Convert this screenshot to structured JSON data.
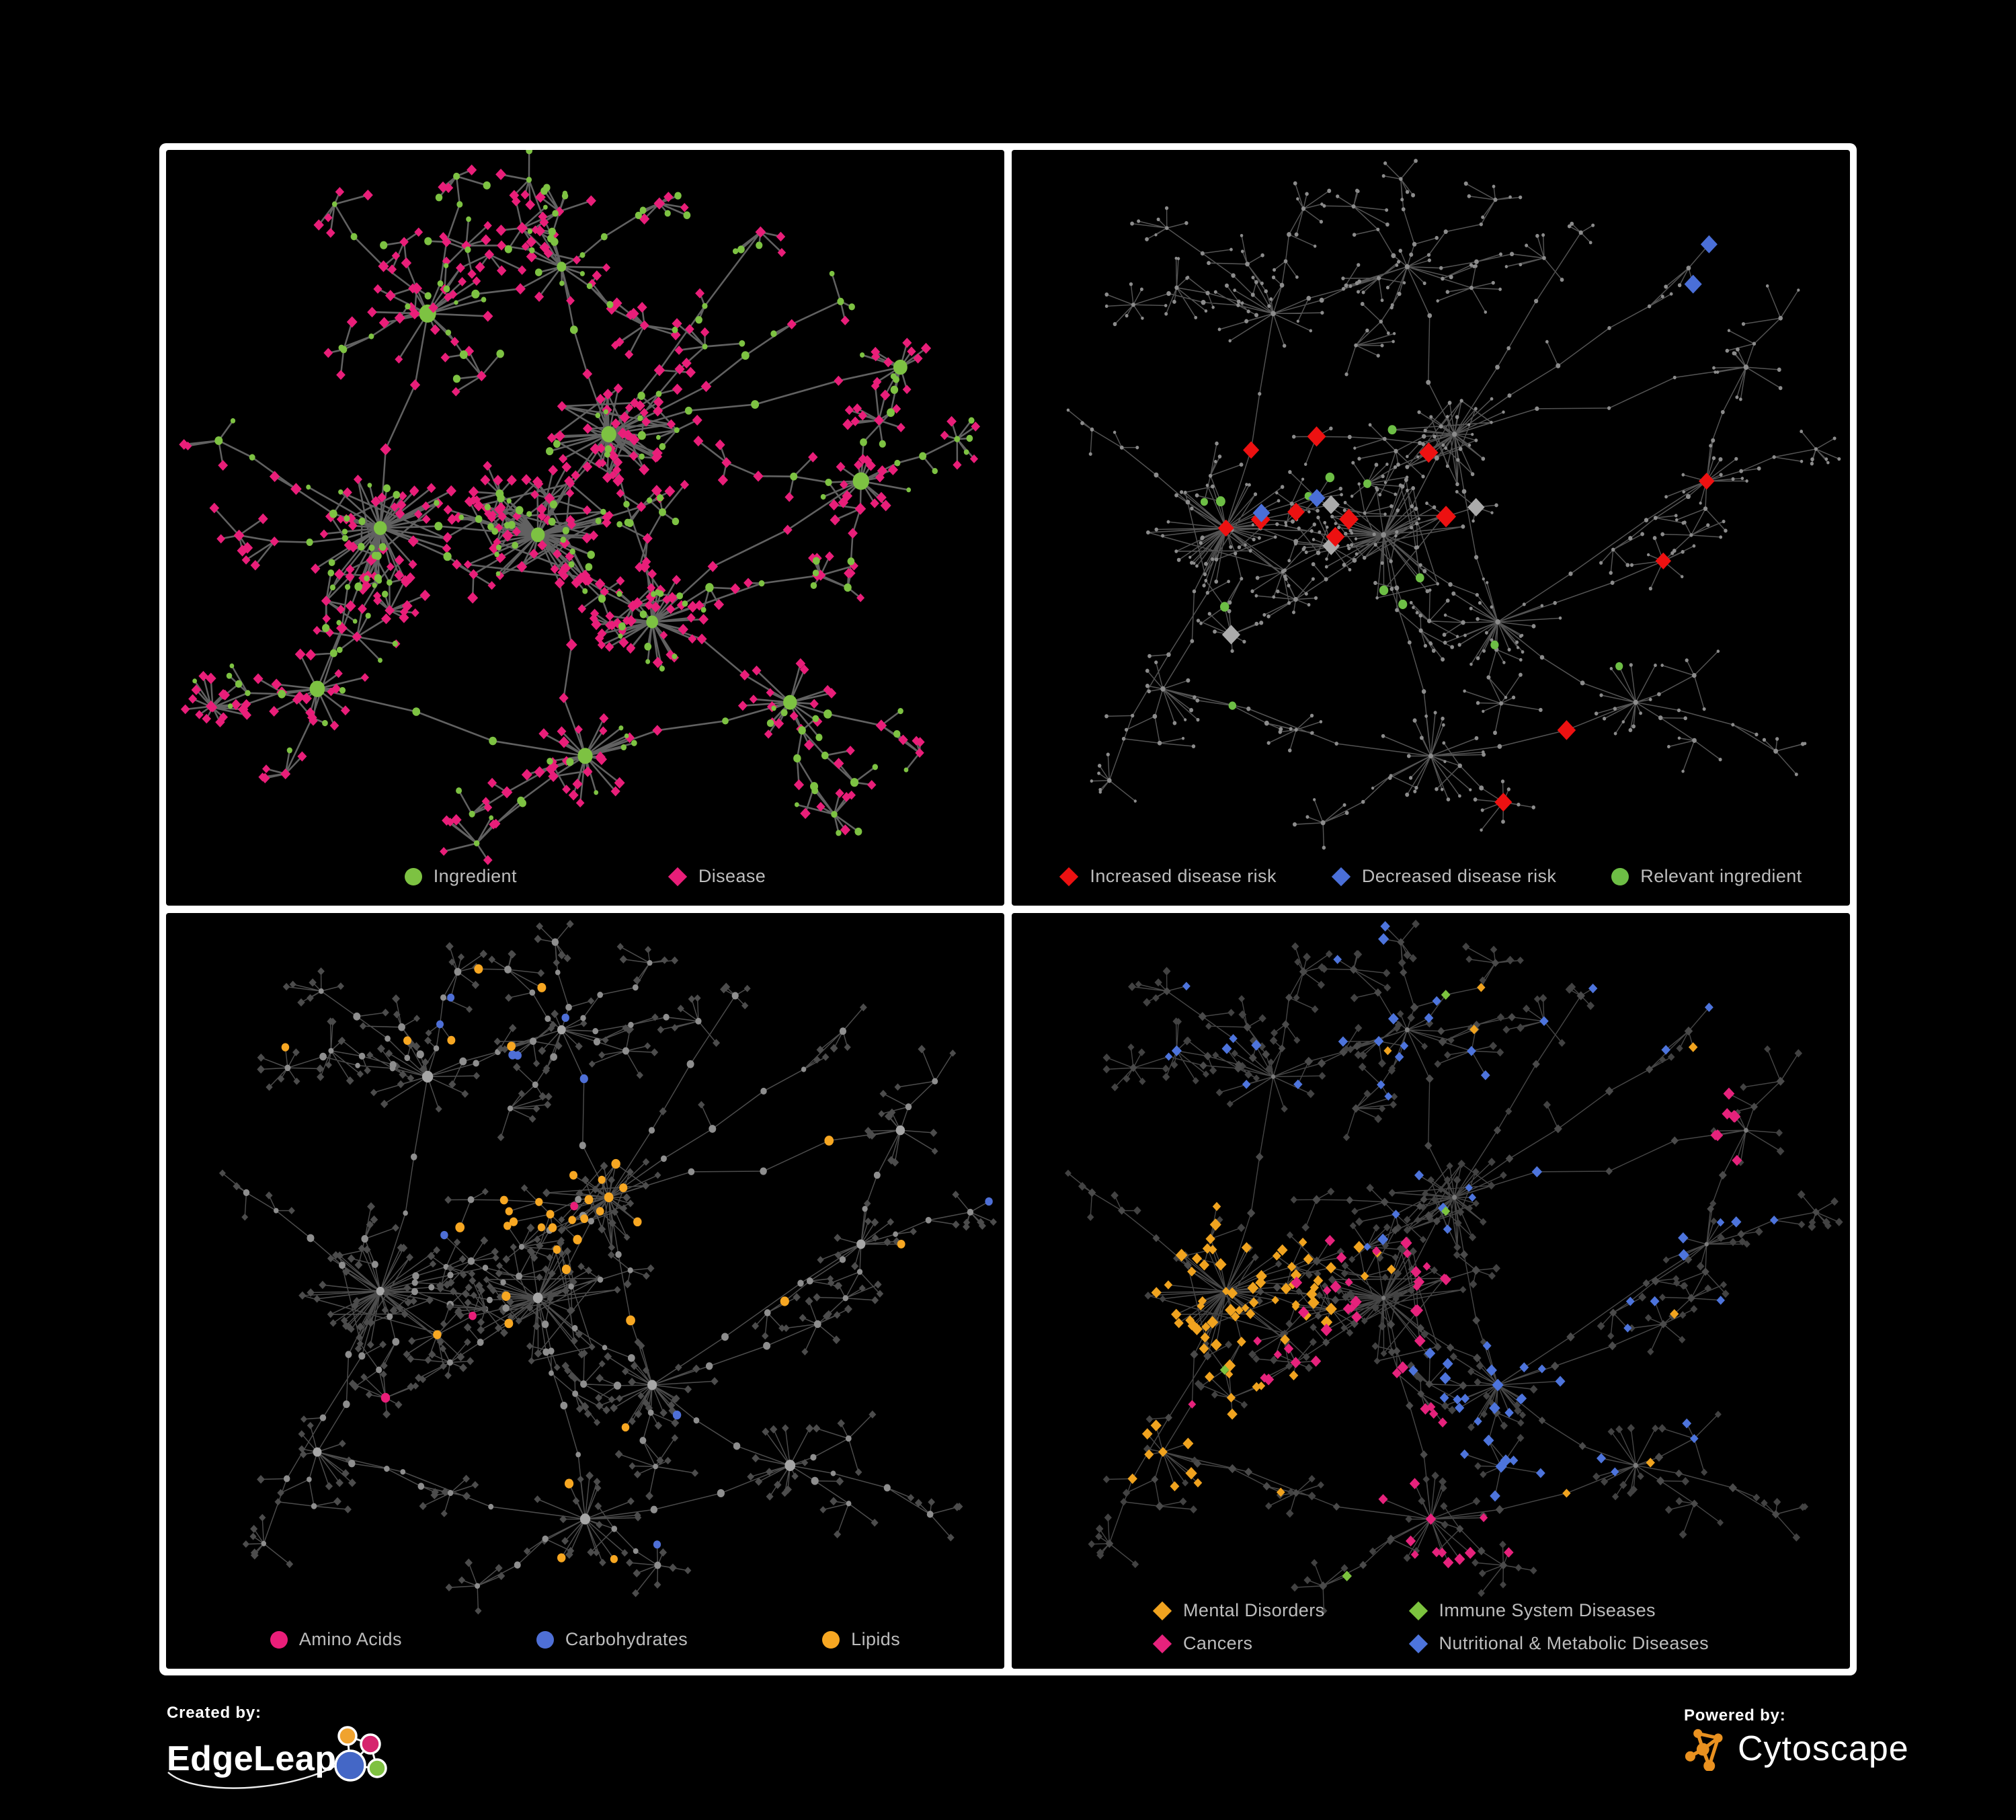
{
  "branding": {
    "created_by": "Created by:",
    "edgeleap": "EdgeLeap",
    "powered_by": "Powered by:",
    "cytoscape": "Cytoscape"
  },
  "colors": {
    "background": "#000000",
    "panel_border": "#ffffff",
    "legend_text": "#BDBDBD",
    "green": "#7DC242",
    "pink": "#E91E79",
    "red": "#ED1111",
    "blue": "#4A6FD8",
    "orange": "#F7A722",
    "gray_dot": "#8C8C8C",
    "gray_diamond": "#ABABAB",
    "dark_diamond": "#434343",
    "edgeleap_orange": "#F0A32F",
    "edgeleap_pink": "#D6246E",
    "edgeleap_blue": "#4467C6",
    "edgeleap_green": "#7FC141",
    "cytoscape_orange": "#E99120"
  },
  "panels": [
    {
      "id": "ingredients-diseases",
      "seed": 41,
      "graph": "own",
      "density": 1.25,
      "style": {
        "edge": {
          "color": "#666666",
          "width": 2.0,
          "opacity": 0.95
        },
        "base": {
          "hub": {
            "shape": "circle",
            "color": "#7DC242",
            "smin": 5.5,
            "smax": 10.5
          },
          "mid": {
            "shape": "diamond",
            "color": "#E91E79",
            "smin": 3.8,
            "smax": 4.8
          },
          "leaf": {
            "shape": "diamond",
            "color": "#E91E79",
            "smin": 3.4,
            "smax": 4.6
          }
        },
        "rules": [
          {
            "shape": "circle",
            "color": "#7DC242",
            "kinds": [
              "mid"
            ],
            "p": 0.45,
            "max": 999,
            "smin": 3.0,
            "smax": 5.0
          },
          {
            "shape": "circle",
            "color": "#7DC242",
            "kinds": [
              "leaf"
            ],
            "p": 0.28,
            "max": 999,
            "smin": 2.6,
            "smax": 4.6
          }
        ]
      },
      "legend": {
        "items": [
          {
            "shape": "circle",
            "color": "#7DC242",
            "label": "Ingredient"
          },
          {
            "shape": "diamond",
            "color": "#E91E79",
            "label": "Disease"
          }
        ]
      }
    },
    {
      "id": "disease-risk",
      "seed": 77,
      "graph": "shared",
      "style": {
        "edge": {
          "color": "#616161",
          "width": 1.15,
          "opacity": 0.85
        },
        "base": {
          "hub": {
            "shape": "circle",
            "color": "#8C8C8C",
            "smin": 2.6,
            "smax": 3.1
          },
          "mid": {
            "shape": "circle",
            "color": "#8C8C8C",
            "smin": 2.0,
            "smax": 2.8
          },
          "leaf": {
            "shape": "circle",
            "color": "#8C8C8C",
            "smin": 1.7,
            "smax": 2.4
          }
        },
        "rules": [
          {
            "shape": "diamond",
            "color": "#4A6FD8",
            "clusters": [
              "ne-end"
            ],
            "p": 1,
            "max": 2,
            "smin": 6.5,
            "smax": 7.5
          },
          {
            "shape": "diamond",
            "color": "#ED1111",
            "clusters": [
              "left",
              "center",
              "upper",
              "rightstar",
              "se",
              "ne-far",
              "right",
              "bottomstar"
            ],
            "kinds": [
              "mid",
              "hub"
            ],
            "p": 0.16,
            "max": 34,
            "smin": 6.5,
            "smax": 9.5
          },
          {
            "shape": "diamond",
            "color": "#4A6FD8",
            "clusters": [
              "left",
              "center"
            ],
            "kinds": [
              "mid"
            ],
            "p": 0.07,
            "max": 8,
            "smin": 6.0,
            "smax": 8.0
          },
          {
            "shape": "diamond",
            "color": "#ABABAB",
            "clusters": [
              "left",
              "center",
              "upper",
              "rightstar"
            ],
            "kinds": [
              "mid"
            ],
            "p": 0.05,
            "max": 8,
            "smin": 6.5,
            "smax": 8.0
          },
          {
            "shape": "circle",
            "color": "#6DBE45",
            "clusters": [
              "left",
              "center",
              "upper",
              "rightstar",
              "se",
              "swsmall",
              "ne-arm"
            ],
            "kinds": [
              "mid",
              "leaf"
            ],
            "p": 0.055,
            "max": 30,
            "smin": 4.4,
            "smax": 5.6
          }
        ]
      },
      "legend": {
        "items": [
          {
            "shape": "diamond",
            "color": "#ED1111",
            "label": "Increased disease risk"
          },
          {
            "shape": "diamond",
            "color": "#4A6FD8",
            "label": "Decreased disease risk"
          },
          {
            "shape": "circle",
            "color": "#6DBE45",
            "label": "Relevant ingredient"
          }
        ]
      }
    },
    {
      "id": "nutrients",
      "seed": 77,
      "graph": "shared",
      "style": {
        "edge": {
          "color": "#6C6C6C",
          "width": 1.15,
          "opacity": 0.7
        },
        "base": {
          "hub": {
            "shape": "circle",
            "color": "#A6A6A6",
            "smin": 4.5,
            "smax": 7.0
          },
          "mid": {
            "shape": "circle",
            "color": "#8E8E8E",
            "smin": 3.0,
            "smax": 4.5
          },
          "leaf": {
            "shape": "diamond",
            "color": "#4C4C4C",
            "smin": 2.8,
            "smax": 3.4
          }
        },
        "rules": [
          {
            "shape": "circle",
            "color": "#F7A722",
            "clusters": [
              "upper"
            ],
            "p": 0.4,
            "max": 38,
            "smin": 4.5,
            "smax": 5.6
          },
          {
            "shape": "circle",
            "color": "#F7A722",
            "clusters": [
              "center",
              "rightstar",
              "right",
              "north",
              "ne-far",
              "bottomstar",
              "nw"
            ],
            "kinds": [
              "mid",
              "leaf"
            ],
            "p": 0.035,
            "max": 16,
            "smin": 4.5,
            "smax": 5.5
          },
          {
            "shape": "circle",
            "color": "#E91E79",
            "kinds": [
              "mid",
              "hub"
            ],
            "p": 0.045,
            "max": 22,
            "smin": 4.5,
            "smax": 5.5
          },
          {
            "shape": "circle",
            "color": "#4E6FD6",
            "kinds": [
              "mid",
              "leaf"
            ],
            "p": 0.016,
            "max": 11,
            "smin": 4.4,
            "smax": 5.0
          }
        ]
      },
      "legend": {
        "items": [
          {
            "shape": "circle",
            "color": "#E91E79",
            "label": "Amino Acids"
          },
          {
            "shape": "circle",
            "color": "#4E6FD6",
            "label": "Carbohydrates"
          },
          {
            "shape": "circle",
            "color": "#F7A722",
            "label": "Lipids"
          }
        ]
      }
    },
    {
      "id": "disease-classes",
      "seed": 77,
      "graph": "shared",
      "style": {
        "edge": {
          "color": "#585858",
          "width": 1.1,
          "opacity": 0.8
        },
        "base": {
          "hub": {
            "shape": "circle",
            "color": "#7B7B7B",
            "smin": 2.4,
            "smax": 3.0
          },
          "mid": {
            "shape": "diamond",
            "color": "#4A4A4A",
            "smin": 3.0,
            "smax": 3.6
          },
          "leaf": {
            "shape": "diamond",
            "color": "#424242",
            "smin": 2.8,
            "smax": 3.4
          }
        },
        "rules": [
          {
            "shape": "diamond",
            "color": "#F0A31F",
            "clusters": [
              "left",
              "swsmall",
              "w-arm"
            ],
            "p": 0.6,
            "max": 78,
            "smin": 3.2,
            "smax": 5.0
          },
          {
            "shape": "diamond",
            "color": "#E6227C",
            "clusters": [
              "center",
              "bottomstar"
            ],
            "p": 0.38,
            "max": 48,
            "smin": 3.4,
            "smax": 5.0
          },
          {
            "shape": "diamond",
            "color": "#E6227C",
            "clusters": [
              "ne-far"
            ],
            "p": 0.5,
            "max": 7,
            "smin": 4.0,
            "smax": 5.0
          },
          {
            "shape": "diamond",
            "color": "#4D74DC",
            "clusters": [
              "rightstar"
            ],
            "p": 0.5,
            "max": 26,
            "smin": 3.4,
            "smax": 5.0
          },
          {
            "shape": "diamond",
            "color": "#4D74DC",
            "clusters": [
              "nw",
              "north",
              "ne-arm",
              "right",
              "upper",
              "se",
              "ne-end"
            ],
            "kinds": [
              "mid",
              "leaf"
            ],
            "p": 0.14,
            "max": 52,
            "smin": 3.2,
            "smax": 4.6
          },
          {
            "shape": "diamond",
            "color": "#7CC33E",
            "p": 0.013,
            "max": 9,
            "smin": 3.6,
            "smax": 4.4
          },
          {
            "shape": "diamond",
            "color": "#F0A31F",
            "p": 0.02,
            "max": 10,
            "smin": 3.2,
            "smax": 4.2
          },
          {
            "shape": "diamond",
            "color": "#E6227C",
            "p": 0.012,
            "max": 8,
            "smin": 3.2,
            "smax": 4.2
          }
        ]
      },
      "legend": {
        "items": [
          {
            "shape": "diamond",
            "color": "#F0A31F",
            "label": "Mental Disorders"
          },
          {
            "shape": "diamond",
            "color": "#7CC33E",
            "label": "Immune System Diseases"
          },
          {
            "shape": "diamond",
            "color": "#E6227C",
            "label": "Cancers"
          },
          {
            "shape": "diamond",
            "color": "#4D74DC",
            "label": "Nutritional & Metabolic Diseases"
          }
        ]
      }
    }
  ],
  "chart_data": [
    {
      "type": "network",
      "panel": "top-left",
      "layout": "organic force-directed, multiple hub clusters with leaf starbursts",
      "node_types": [
        {
          "label": "Ingredient",
          "shape": "circle",
          "color": "#7DC242",
          "approx_count": 260
        },
        {
          "label": "Disease",
          "shape": "diamond",
          "color": "#E91E79",
          "approx_count": 480
        }
      ],
      "edges": {
        "color": "#666666",
        "approx_count": 760
      },
      "legend_position": "bottom-center"
    },
    {
      "type": "network",
      "panel": "top-right",
      "layout": "same organic layout as bottom panels; all base nodes small gray dots",
      "node_types": [
        {
          "label": "Increased disease risk",
          "shape": "diamond",
          "color": "#ED1111",
          "approx_count": 34
        },
        {
          "label": "Decreased disease risk",
          "shape": "diamond",
          "color": "#4A6FD8",
          "approx_count": 10
        },
        {
          "label": "Neutral risk",
          "shape": "diamond",
          "color": "#ABABAB",
          "approx_count": 8
        },
        {
          "label": "Relevant ingredient",
          "shape": "circle",
          "color": "#6DBE45",
          "approx_count": 30
        },
        {
          "label": "Other node",
          "shape": "circle",
          "color": "#8C8C8C",
          "approx_count": 560
        }
      ],
      "edges": {
        "color": "#616161",
        "approx_count": 640
      },
      "legend_position": "bottom-center"
    },
    {
      "type": "network",
      "panel": "bottom-left",
      "layout": "same organic layout; gray circle hubs with dark diamond leaves",
      "node_types": [
        {
          "label": "Amino Acids",
          "shape": "circle",
          "color": "#E91E79",
          "approx_count": 22
        },
        {
          "label": "Carbohydrates",
          "shape": "circle",
          "color": "#4E6FD6",
          "approx_count": 11
        },
        {
          "label": "Lipids",
          "shape": "circle",
          "color": "#F7A722",
          "approx_count": 50
        },
        {
          "label": "Other node",
          "shape": "circle/diamond",
          "color": "#8E8E8E",
          "approx_count": 540
        }
      ],
      "edges": {
        "color": "#6C6C6C",
        "approx_count": 640
      },
      "legend_position": "bottom-center"
    },
    {
      "type": "network",
      "panel": "bottom-right",
      "layout": "same organic layout; dark gray diamond base nodes, colored disease-class clusters",
      "node_types": [
        {
          "label": "Mental Disorders",
          "shape": "diamond",
          "color": "#F0A31F",
          "approx_count": 80
        },
        {
          "label": "Immune System Diseases",
          "shape": "diamond",
          "color": "#7CC33E",
          "approx_count": 9
        },
        {
          "label": "Cancers",
          "shape": "diamond",
          "color": "#E6227C",
          "approx_count": 58
        },
        {
          "label": "Nutritional & Metabolic Diseases",
          "shape": "diamond",
          "color": "#4D74DC",
          "approx_count": 78
        },
        {
          "label": "Other node",
          "shape": "diamond",
          "color": "#424242",
          "approx_count": 420
        }
      ],
      "edges": {
        "color": "#585858",
        "approx_count": 640
      },
      "legend_position": "bottom-center, two columns"
    }
  ]
}
